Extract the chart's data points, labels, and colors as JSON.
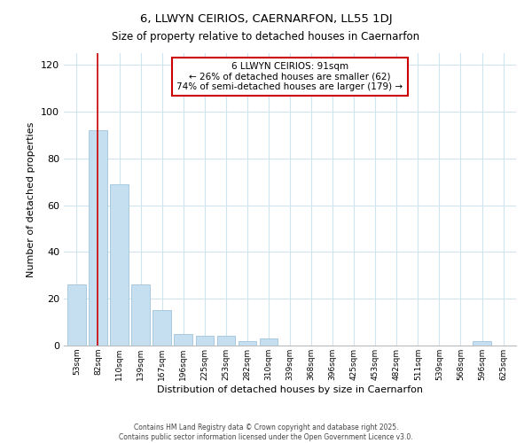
{
  "title": "6, LLWYN CEIRIOS, CAERNARFON, LL55 1DJ",
  "subtitle": "Size of property relative to detached houses in Caernarfon",
  "xlabel": "Distribution of detached houses by size in Caernarfon",
  "ylabel": "Number of detached properties",
  "bar_labels": [
    "53sqm",
    "82sqm",
    "110sqm",
    "139sqm",
    "167sqm",
    "196sqm",
    "225sqm",
    "253sqm",
    "282sqm",
    "310sqm",
    "339sqm",
    "368sqm",
    "396sqm",
    "425sqm",
    "453sqm",
    "482sqm",
    "511sqm",
    "539sqm",
    "568sqm",
    "596sqm",
    "625sqm"
  ],
  "bar_values": [
    26,
    92,
    69,
    26,
    15,
    5,
    4,
    4,
    2,
    3,
    0,
    0,
    0,
    0,
    0,
    0,
    0,
    0,
    0,
    2,
    0
  ],
  "bar_color": "#c5dff0",
  "bar_edge_color": "#a0c4dc",
  "vline_x": 1,
  "vline_color": "#cc0000",
  "ylim": [
    0,
    125
  ],
  "yticks": [
    0,
    20,
    40,
    60,
    80,
    100,
    120
  ],
  "annotation_text": "6 LLWYN CEIRIOS: 91sqm\n← 26% of detached houses are smaller (62)\n74% of semi-detached houses are larger (179) →",
  "annotation_box_color": "#ffffff",
  "annotation_box_edge_color": "#cc0000",
  "footer1": "Contains HM Land Registry data © Crown copyright and database right 2025.",
  "footer2": "Contains public sector information licensed under the Open Government Licence v3.0."
}
